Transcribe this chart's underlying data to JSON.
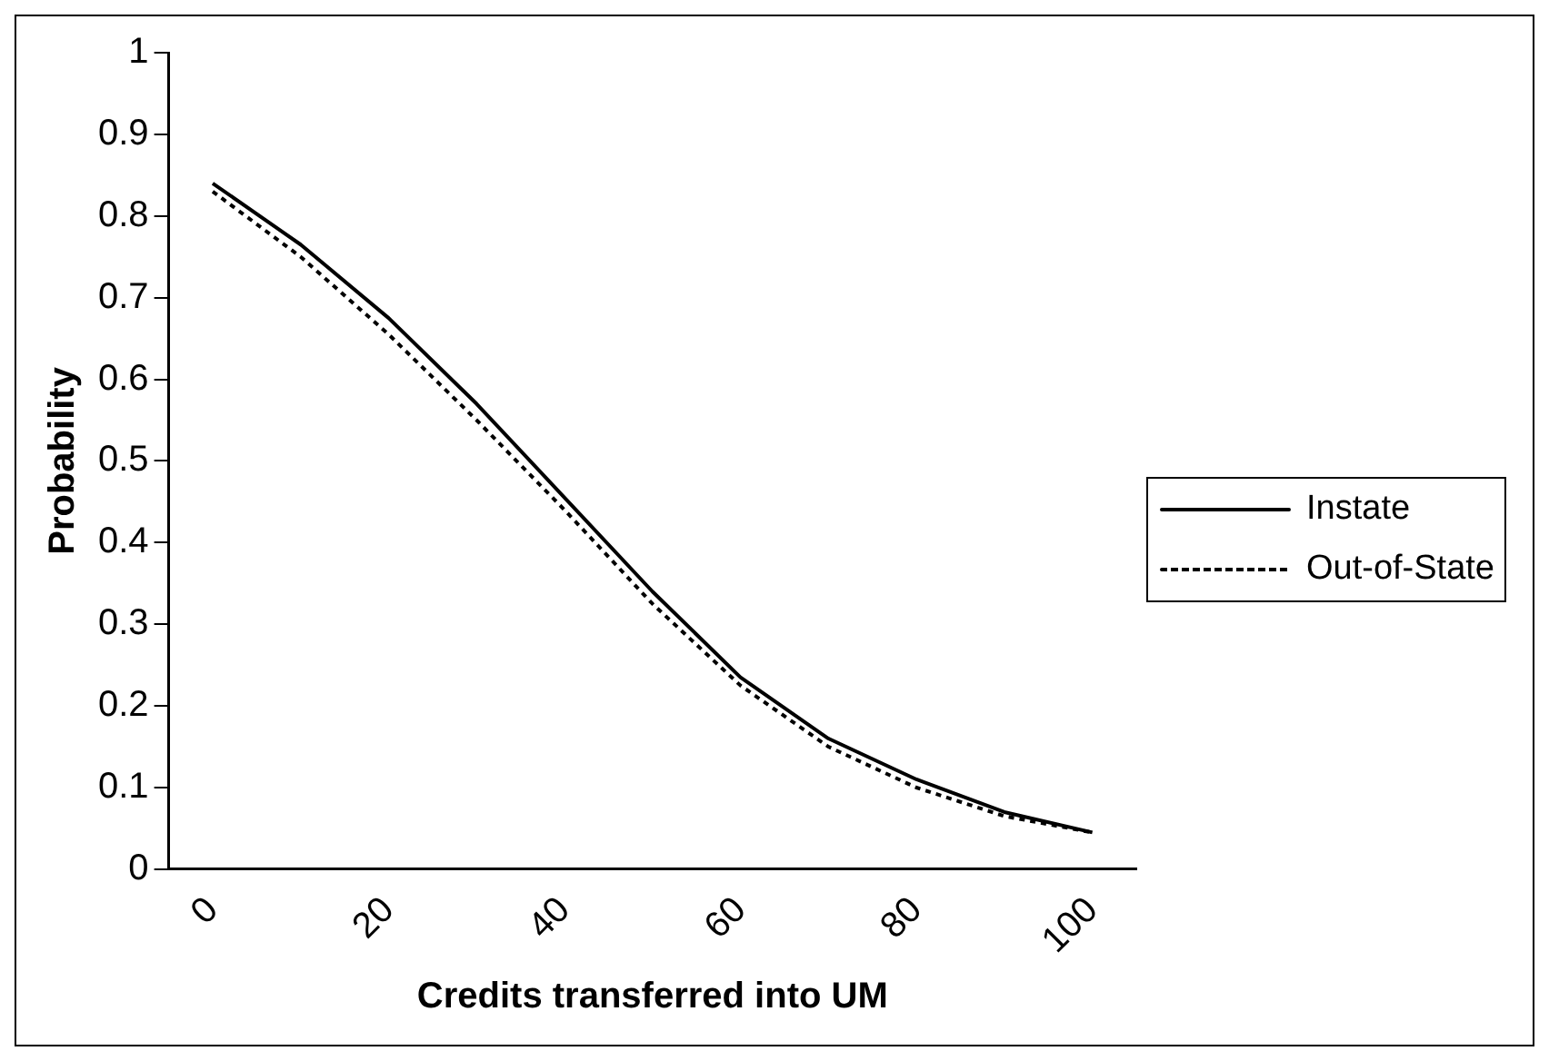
{
  "chart_data": {
    "type": "line",
    "xlabel": "Credits transferred into UM",
    "ylabel": "Probability",
    "categories": [
      "0",
      null,
      "20",
      null,
      "40",
      null,
      "60",
      null,
      "80",
      null,
      "100"
    ],
    "series": [
      {
        "name": "Instate",
        "color": "#000000",
        "line_style": "solid",
        "values": [
          0.84,
          0.765,
          0.675,
          0.57,
          0.455,
          0.34,
          0.235,
          0.16,
          0.11,
          0.07,
          0.045
        ]
      },
      {
        "name": "Out-of-State",
        "color": "#000000",
        "line_style": "dotted",
        "values": [
          0.83,
          0.75,
          0.655,
          0.55,
          0.44,
          0.325,
          0.225,
          0.15,
          0.1,
          0.065,
          0.045
        ]
      }
    ],
    "ylim": [
      0,
      1
    ],
    "yticks": [
      0,
      0.1,
      0.2,
      0.3,
      0.4,
      0.5,
      0.6,
      0.7,
      0.8,
      0.9,
      1
    ],
    "grid": false,
    "legend": "right",
    "marker": "none"
  }
}
